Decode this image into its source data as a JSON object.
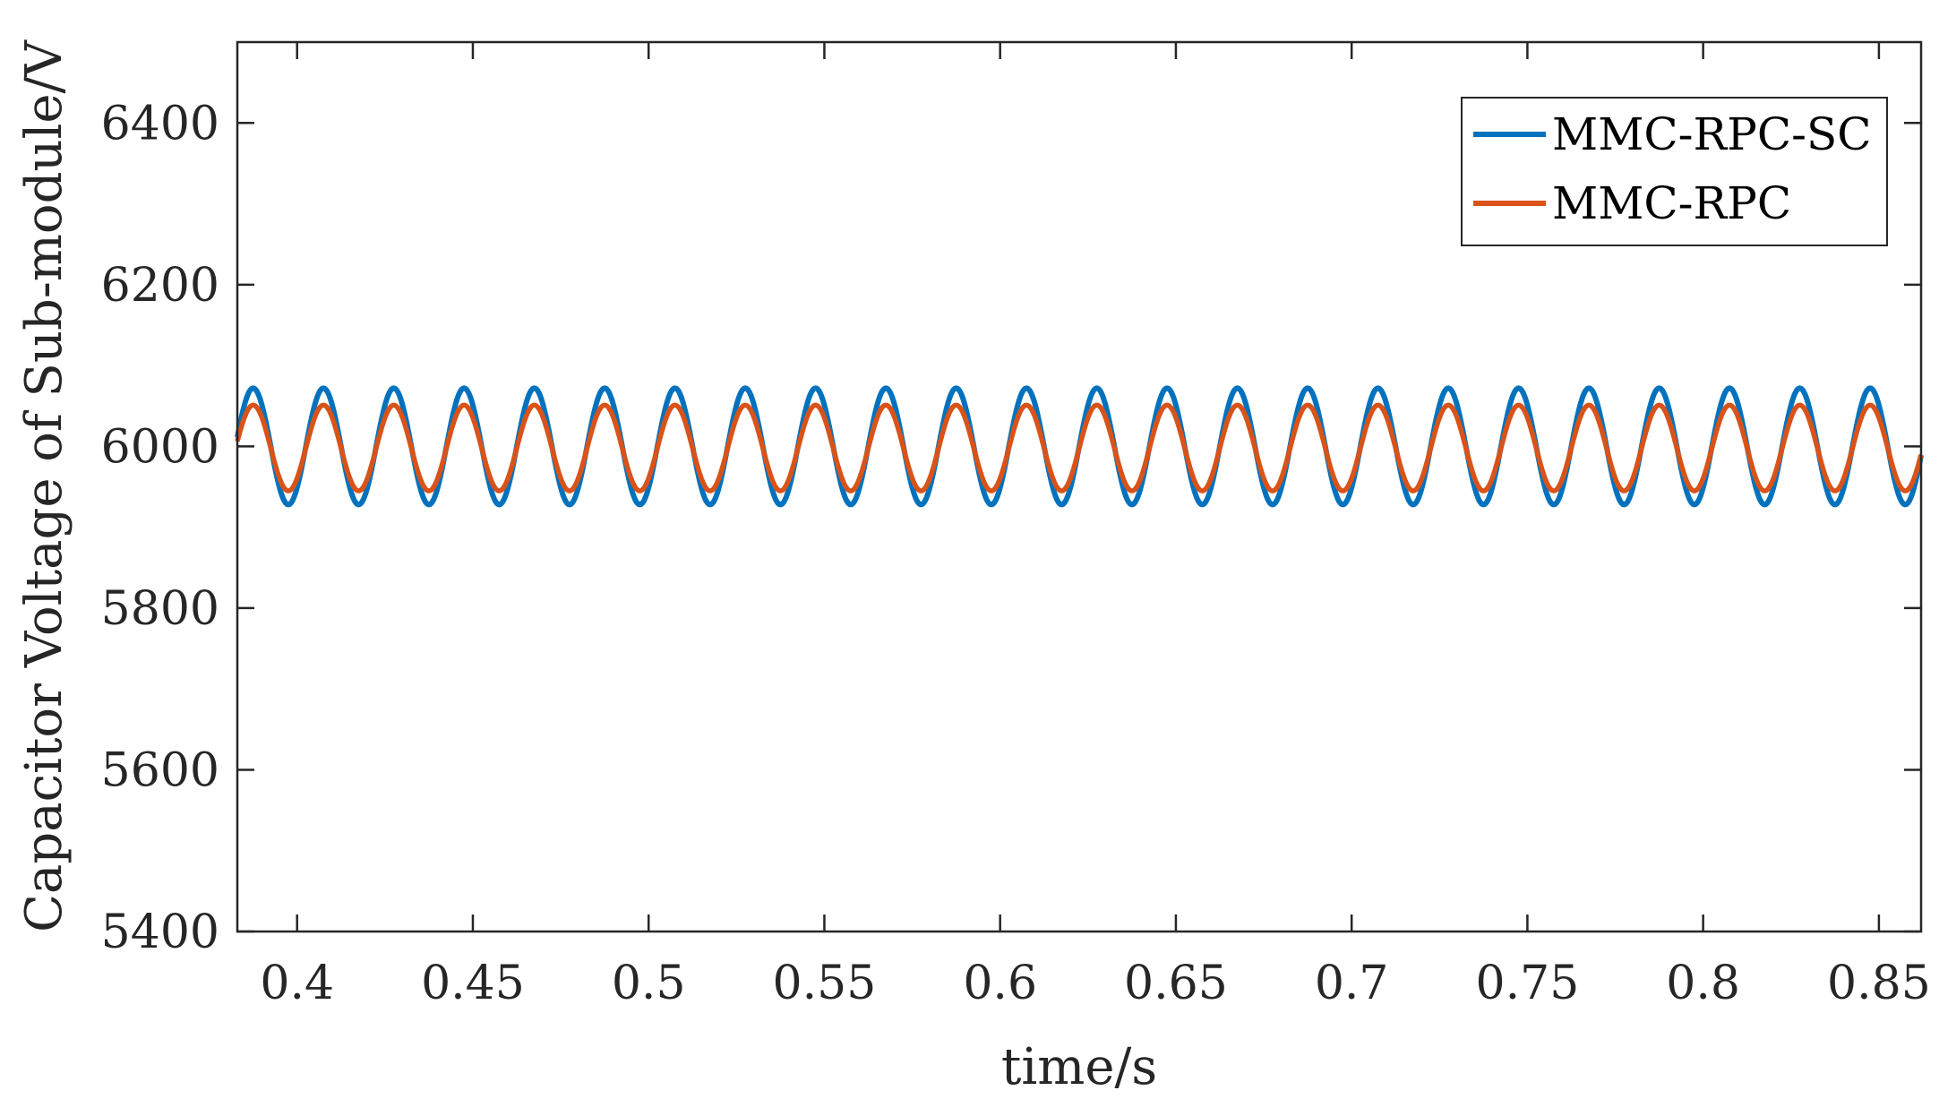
{
  "chart_data": {
    "type": "line",
    "title": "",
    "xlabel": "time/s",
    "ylabel": "Capacitor Voltage of Sub-module/V",
    "xlim": [
      0.383,
      0.862
    ],
    "ylim": [
      5400,
      6500
    ],
    "xticks": [
      0.4,
      0.45,
      0.5,
      0.55,
      0.6,
      0.65,
      0.7,
      0.75,
      0.8,
      0.85
    ],
    "xtick_labels": [
      "0.4",
      "0.45",
      "0.5",
      "0.55",
      "0.6",
      "0.65",
      "0.7",
      "0.75",
      "0.8",
      "0.85"
    ],
    "yticks": [
      5400,
      5600,
      5800,
      6000,
      6200,
      6400
    ],
    "ytick_labels": [
      "5400",
      "5600",
      "5800",
      "6000",
      "6200",
      "6400"
    ],
    "grid": false,
    "legend_position": "top-right",
    "series": [
      {
        "name": "MMC-RPC-SC",
        "color": "#0072BD",
        "waveform": "sinusoid",
        "period_s": 0.02,
        "mean": 6000,
        "amplitude": 72,
        "first_peak_s": 0.3875
      },
      {
        "name": "MMC-RPC",
        "color": "#D95319",
        "waveform": "sinusoid",
        "period_s": 0.02,
        "mean": 5998,
        "amplitude": 53,
        "first_peak_s": 0.3875
      }
    ]
  }
}
